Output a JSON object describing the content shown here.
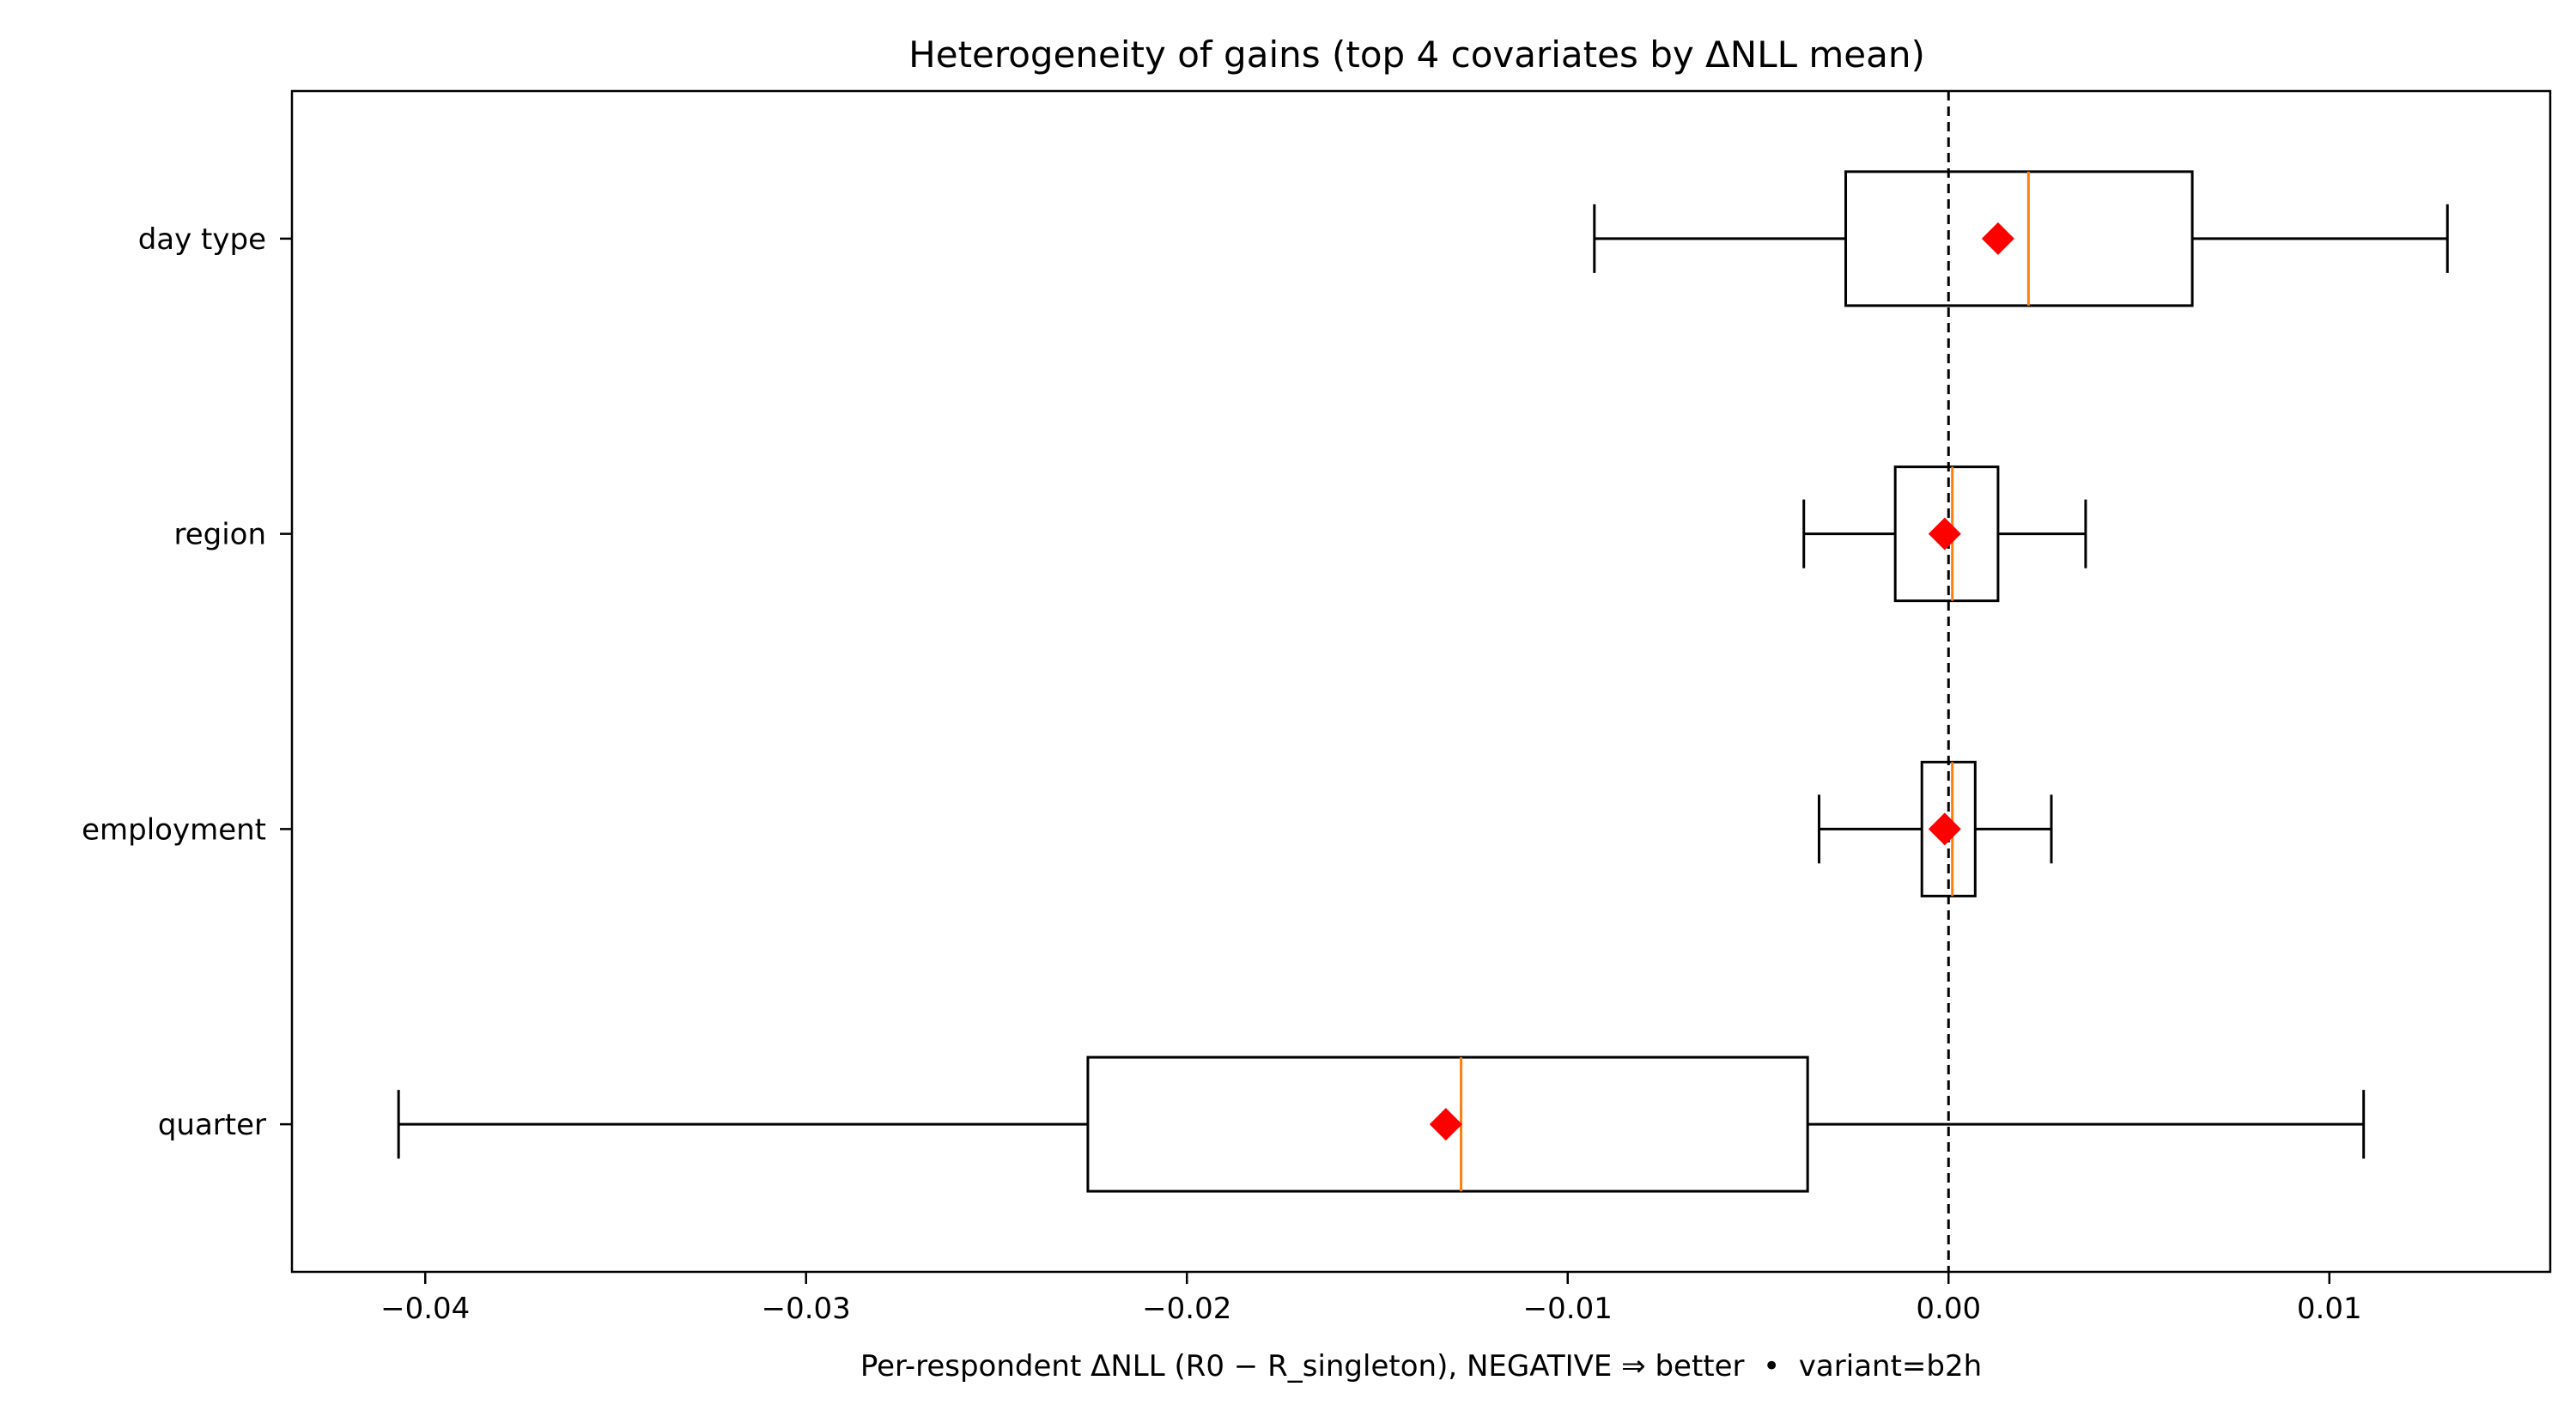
{
  "chart_data": {
    "type": "boxplot",
    "orientation": "horizontal",
    "title": "Heterogeneity of gains (top 4 covariates by ΔNLL mean)",
    "xlabel": "Per-respondent ΔNLL (R0 − R_singleton), NEGATIVE ⇒ better  •  variant=b2h",
    "ylabel": "",
    "xlim": [
      -0.0435,
      0.0158
    ],
    "xticks": [
      {
        "value": -0.04,
        "label": "−0.04"
      },
      {
        "value": -0.03,
        "label": "−0.03"
      },
      {
        "value": -0.02,
        "label": "−0.02"
      },
      {
        "value": -0.01,
        "label": "−0.01"
      },
      {
        "value": 0.0,
        "label": "0.00"
      },
      {
        "value": 0.01,
        "label": "0.01"
      }
    ],
    "reference_line": {
      "x": 0.0,
      "style": "dashed",
      "color": "#000000"
    },
    "grid": false,
    "categories": [
      "day type",
      "region",
      "employment",
      "quarter"
    ],
    "boxes": [
      {
        "name": "day type",
        "whisker_low": -0.0093,
        "q1": -0.0027,
        "median": 0.0021,
        "q3": 0.0064,
        "whisker_high": 0.0131,
        "mean": 0.0013
      },
      {
        "name": "region",
        "whisker_low": -0.0038,
        "q1": -0.0014,
        "median": 0.0001,
        "q3": 0.0013,
        "whisker_high": 0.0036,
        "mean": -0.0001
      },
      {
        "name": "employment",
        "whisker_low": -0.0034,
        "q1": -0.0007,
        "median": 0.0001,
        "q3": 0.0007,
        "whisker_high": 0.0027,
        "mean": -0.0001
      },
      {
        "name": "quarter",
        "whisker_low": -0.0407,
        "q1": -0.0226,
        "median": -0.0128,
        "q3": -0.0037,
        "whisker_high": 0.0109,
        "mean": -0.0132
      }
    ],
    "colors": {
      "box": "#000000",
      "median": "#ff7f0e",
      "mean": "#ff0000",
      "reference": "#000000"
    }
  }
}
